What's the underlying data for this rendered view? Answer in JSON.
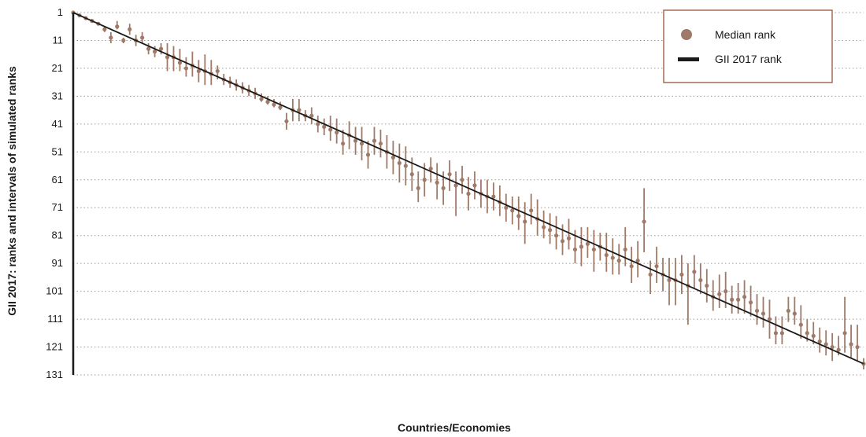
{
  "chart_data": {
    "type": "scatter",
    "xlabel": "Countries/Economies",
    "ylabel": "GII 2017: ranks and intervals of simulated ranks",
    "ylim": [
      1,
      131
    ],
    "y_inverted": true,
    "y_ticks": [
      1,
      11,
      21,
      31,
      41,
      51,
      61,
      71,
      81,
      91,
      101,
      111,
      121,
      131
    ],
    "grid": "horizontal dotted",
    "legend": {
      "position": "top-right",
      "entries": [
        {
          "label": "Median rank",
          "marker": "circle"
        },
        {
          "label": "GII 2017 rank",
          "marker": "line"
        }
      ]
    },
    "colors": {
      "median": "#a07a68",
      "gii_line": "#1a1a1a",
      "grid": "#9a9a9a",
      "legend_border": "#a56a55"
    },
    "series": [
      {
        "name": "GII 2017 rank",
        "x": [
          1,
          127
        ],
        "y": [
          1,
          127
        ]
      },
      {
        "name": "Median rank",
        "x": [
          1,
          2,
          3,
          4,
          5,
          6,
          7,
          8,
          9,
          10,
          11,
          12,
          13,
          14,
          15,
          16,
          17,
          18,
          19,
          20,
          21,
          22,
          23,
          24,
          25,
          26,
          27,
          28,
          29,
          30,
          31,
          32,
          33,
          34,
          35,
          36,
          37,
          38,
          39,
          40,
          41,
          42,
          43,
          44,
          45,
          46,
          47,
          48,
          49,
          50,
          51,
          52,
          53,
          54,
          55,
          56,
          57,
          58,
          59,
          60,
          61,
          62,
          63,
          64,
          65,
          66,
          67,
          68,
          69,
          70,
          71,
          72,
          73,
          74,
          75,
          76,
          77,
          78,
          79,
          80,
          81,
          82,
          83,
          84,
          85,
          86,
          87,
          88,
          89,
          90,
          91,
          92,
          93,
          94,
          95,
          96,
          97,
          98,
          99,
          100,
          101,
          102,
          103,
          104,
          105,
          106,
          107,
          108,
          109,
          110,
          111,
          112,
          113,
          114,
          115,
          116,
          117,
          118,
          119,
          120,
          121,
          122,
          123,
          124,
          125,
          126,
          127
        ],
        "y": [
          1,
          2,
          3,
          4,
          5,
          7,
          10,
          6,
          11,
          7,
          11,
          10,
          14,
          15,
          14,
          17,
          17,
          19,
          21,
          20,
          22,
          22,
          23,
          22,
          25,
          26,
          27,
          28,
          29,
          30,
          32,
          33,
          34,
          35,
          40,
          36,
          36,
          38,
          38,
          41,
          42,
          43,
          44,
          48,
          45,
          47,
          48,
          52,
          47,
          48,
          51,
          53,
          55,
          56,
          59,
          64,
          61,
          57,
          62,
          64,
          59,
          63,
          61,
          66,
          63,
          66,
          67,
          67,
          69,
          71,
          72,
          74,
          76,
          72,
          75,
          78,
          79,
          81,
          83,
          82,
          86,
          85,
          84,
          86,
          85,
          88,
          89,
          90,
          86,
          92,
          90,
          76,
          95,
          92,
          95,
          97,
          97,
          95,
          99,
          94,
          97,
          99,
          103,
          102,
          101,
          104,
          104,
          103,
          105,
          108,
          109,
          111,
          116,
          116,
          108,
          109,
          113,
          116,
          117,
          119,
          120,
          121,
          122,
          116,
          120,
          121,
          127
        ],
        "interval_low": [
          1,
          2,
          3,
          4,
          5,
          6,
          8,
          4,
          10,
          5,
          9,
          8,
          12,
          13,
          12,
          12,
          13,
          14,
          17,
          15,
          18,
          16,
          18,
          20,
          23,
          24,
          25,
          26,
          27,
          28,
          30,
          31,
          32,
          33,
          37,
          32,
          32,
          36,
          35,
          38,
          39,
          38,
          39,
          43,
          40,
          42,
          42,
          47,
          42,
          43,
          45,
          47,
          48,
          49,
          53,
          58,
          55,
          53,
          55,
          58,
          54,
          58,
          56,
          60,
          58,
          61,
          61,
          62,
          63,
          66,
          67,
          67,
          69,
          66,
          68,
          72,
          73,
          74,
          77,
          75,
          79,
          78,
          78,
          79,
          80,
          80,
          82,
          84,
          78,
          85,
          83,
          64,
          90,
          85,
          89,
          89,
          89,
          88,
          91,
          88,
          91,
          93,
          97,
          95,
          94,
          99,
          98,
          97,
          99,
          102,
          103,
          104,
          110,
          110,
          103,
          103,
          106,
          111,
          112,
          114,
          115,
          116,
          117,
          103,
          113,
          113,
          125
        ],
        "interval_high": [
          1,
          2,
          3,
          4,
          5,
          8,
          12,
          7,
          12,
          9,
          13,
          12,
          16,
          17,
          16,
          22,
          22,
          22,
          24,
          24,
          26,
          27,
          27,
          25,
          27,
          28,
          29,
          30,
          31,
          32,
          33,
          34,
          35,
          36,
          43,
          40,
          40,
          40,
          41,
          44,
          45,
          47,
          48,
          52,
          50,
          52,
          54,
          57,
          52,
          53,
          57,
          59,
          62,
          63,
          65,
          69,
          67,
          62,
          68,
          70,
          65,
          74,
          66,
          72,
          68,
          71,
          73,
          72,
          74,
          76,
          77,
          79,
          84,
          77,
          81,
          82,
          84,
          86,
          88,
          86,
          91,
          92,
          89,
          94,
          90,
          94,
          95,
          95,
          92,
          98,
          96,
          87,
          102,
          98,
          101,
          106,
          106,
          102,
          113,
          100,
          102,
          105,
          108,
          107,
          107,
          109,
          109,
          109,
          110,
          113,
          114,
          118,
          120,
          120,
          112,
          113,
          118,
          119,
          120,
          123,
          124,
          126,
          124,
          123,
          125,
          126,
          129
        ]
      }
    ]
  }
}
